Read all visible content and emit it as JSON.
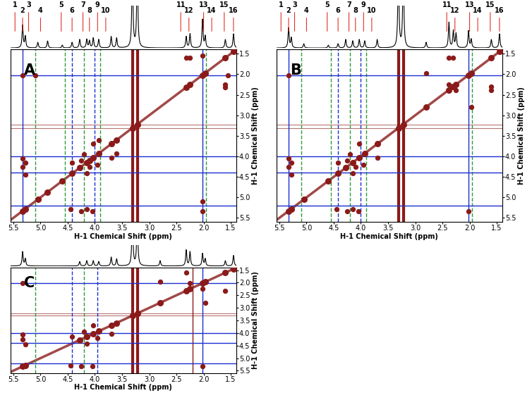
{
  "chart_data": [
    {
      "type": "nmr_2d",
      "label": "A",
      "x_label": "H-1 Chemical Shift (ppm)",
      "y_label": "H-1 Chemical Shift (ppm)",
      "xlim": [
        5.55,
        1.4
      ],
      "ylim": [
        5.6,
        1.4
      ],
      "xticks": [
        5.5,
        5.0,
        4.5,
        4.0,
        3.5,
        3.0,
        2.5,
        2.0,
        1.5
      ],
      "yticks": [
        1.5,
        2.0,
        2.5,
        3.0,
        3.5,
        4.0,
        4.5,
        5.0,
        5.5
      ],
      "color": "#8b1a1a",
      "spectrum": {
        "x": [
          5.33,
          5.28,
          5.05,
          4.87,
          4.6,
          4.42,
          4.28,
          4.15,
          4.1,
          4.03,
          3.93,
          3.7,
          3.6,
          3.31,
          3.22,
          2.32,
          2.25,
          2.02,
          1.97,
          1.6,
          1.45
        ],
        "values": [
          0.8,
          0.4,
          0.2,
          0.25,
          0.1,
          0.2,
          0.3,
          0.3,
          0.25,
          0.35,
          0.3,
          0.4,
          0.35,
          3.0,
          3.0,
          0.4,
          0.5,
          1.0,
          0.4,
          0.3,
          0.5
        ],
        "ylim": [
          0,
          1.5
        ]
      },
      "peak_labels": [
        {
          "label": "1",
          "x": 5.47
        },
        {
          "label": "2",
          "x": 5.33
        },
        {
          "label": "3",
          "x": 5.22
        },
        {
          "label": "4",
          "x": 5.0
        },
        {
          "label": "5",
          "x": 4.62
        },
        {
          "label": "6",
          "x": 4.42
        },
        {
          "label": "7",
          "x": 4.22
        },
        {
          "label": "8",
          "x": 4.1
        },
        {
          "label": "9",
          "x": 3.95
        },
        {
          "label": "10",
          "x": 3.8
        },
        {
          "label": "11",
          "x": 2.42
        },
        {
          "label": "12",
          "x": 2.27
        },
        {
          "label": "13",
          "x": 2.0
        },
        {
          "label": "14",
          "x": 1.85
        },
        {
          "label": "15",
          "x": 1.62
        },
        {
          "label": "16",
          "x": 1.45
        }
      ],
      "cross_peaks": [
        [
          5.33,
          2.02
        ],
        [
          5.33,
          4.25
        ],
        [
          5.33,
          4.05
        ],
        [
          5.28,
          4.45
        ],
        [
          5.28,
          4.15
        ],
        [
          5.1,
          2.02
        ],
        [
          4.42,
          4.15
        ],
        [
          4.25,
          4.1
        ],
        [
          4.2,
          3.95
        ],
        [
          2.32,
          1.6
        ],
        [
          2.25,
          1.6
        ],
        [
          2.02,
          1.55
        ],
        [
          4.03,
          3.7
        ],
        [
          3.93,
          3.6
        ]
      ],
      "solvent": [
        3.31,
        3.22
      ],
      "guides": [
        {
          "x": 5.33,
          "color": "#1a2fd1",
          "line_style": "solid"
        },
        {
          "x": 2.02,
          "color": "#1a2fd1",
          "line_style": "solid"
        },
        {
          "x": 5.1,
          "color": "#2e9a3a",
          "line_style": "dashed"
        },
        {
          "x": 4.55,
          "color": "#2e9a3a",
          "line_style": "dashed"
        },
        {
          "x": 4.42,
          "color": "#1a2fd1",
          "line_style": "dashed"
        },
        {
          "x": 4.2,
          "color": "#2e9a3a",
          "line_style": "dashed"
        },
        {
          "x": 4.0,
          "color": "#1a2fd1",
          "line_style": "dashed"
        },
        {
          "x": 3.9,
          "color": "#2e9a3a",
          "line_style": "dashed"
        },
        {
          "x": 1.95,
          "color": "#2e9a3a",
          "line_style": "dashed"
        },
        {
          "y": 2.02,
          "color": "#1a2fd1",
          "line_style": "solid"
        },
        {
          "y": 4.0,
          "color": "#1a2fd1",
          "line_style": "solid"
        },
        {
          "y": 4.4,
          "color": "#1a2fd1",
          "line_style": "solid"
        },
        {
          "y": 5.2,
          "color": "#1a2fd1",
          "line_style": "solid"
        }
      ]
    },
    {
      "type": "nmr_2d",
      "label": "B",
      "x_label": "H-1 Chemical Shift (ppm)",
      "y_label": "H-1 Chemical Shift (ppm)",
      "xlim": [
        5.55,
        1.4
      ],
      "ylim": [
        5.6,
        1.4
      ],
      "xticks": [
        5.5,
        5.0,
        4.5,
        4.0,
        3.5,
        3.0,
        2.5,
        2.0,
        1.5
      ],
      "yticks": [
        1.5,
        2.0,
        2.5,
        3.0,
        3.5,
        4.0,
        4.5,
        5.0,
        5.5
      ],
      "color": "#8b1a1a",
      "spectrum": {
        "x": [
          5.33,
          5.28,
          5.05,
          4.6,
          4.42,
          4.28,
          4.15,
          4.03,
          3.93,
          3.7,
          3.31,
          3.22,
          2.8,
          2.38,
          2.3,
          2.25,
          2.02,
          1.97,
          1.6,
          1.45
        ],
        "values": [
          0.7,
          0.35,
          0.15,
          0.1,
          0.15,
          0.3,
          0.25,
          0.3,
          0.25,
          0.3,
          3.0,
          3.0,
          0.2,
          0.9,
          0.6,
          0.5,
          0.6,
          0.3,
          0.3,
          0.5
        ],
        "ylim": [
          0,
          1.5
        ]
      },
      "peak_labels": [
        {
          "label": "1",
          "x": 5.47
        },
        {
          "label": "2",
          "x": 5.33
        },
        {
          "label": "3",
          "x": 5.22
        },
        {
          "label": "4",
          "x": 5.0
        },
        {
          "label": "5",
          "x": 4.62
        },
        {
          "label": "6",
          "x": 4.42
        },
        {
          "label": "7",
          "x": 4.22
        },
        {
          "label": "8",
          "x": 4.1
        },
        {
          "label": "9",
          "x": 3.95
        },
        {
          "label": "10",
          "x": 3.8
        },
        {
          "label": "11",
          "x": 2.42
        },
        {
          "label": "12",
          "x": 2.27
        },
        {
          "label": "13",
          "x": 2.0
        },
        {
          "label": "14",
          "x": 1.85
        },
        {
          "label": "15",
          "x": 1.62
        },
        {
          "label": "16",
          "x": 1.45
        }
      ],
      "cross_peaks": [
        [
          5.33,
          2.02
        ],
        [
          5.33,
          4.25
        ],
        [
          5.33,
          4.05
        ],
        [
          5.28,
          4.45
        ],
        [
          5.28,
          4.15
        ],
        [
          4.42,
          4.15
        ],
        [
          4.25,
          4.1
        ],
        [
          4.2,
          3.95
        ],
        [
          2.38,
          1.6
        ],
        [
          2.3,
          1.6
        ],
        [
          2.25,
          2.38
        ],
        [
          4.03,
          3.7
        ],
        [
          2.8,
          1.97
        ]
      ],
      "solvent": [
        3.31,
        3.22
      ],
      "guides": [
        {
          "x": 5.33,
          "color": "#1a2fd1",
          "line_style": "solid"
        },
        {
          "x": 2.02,
          "color": "#1a2fd1",
          "line_style": "solid"
        },
        {
          "x": 5.1,
          "color": "#2e9a3a",
          "line_style": "dashed"
        },
        {
          "x": 4.55,
          "color": "#2e9a3a",
          "line_style": "dashed"
        },
        {
          "x": 4.42,
          "color": "#1a2fd1",
          "line_style": "dashed"
        },
        {
          "x": 4.2,
          "color": "#2e9a3a",
          "line_style": "dashed"
        },
        {
          "x": 4.0,
          "color": "#1a2fd1",
          "line_style": "dashed"
        },
        {
          "x": 3.9,
          "color": "#2e9a3a",
          "line_style": "dashed"
        },
        {
          "x": 1.95,
          "color": "#2e9a3a",
          "line_style": "dashed"
        },
        {
          "y": 2.02,
          "color": "#1a2fd1",
          "line_style": "solid"
        },
        {
          "y": 4.0,
          "color": "#1a2fd1",
          "line_style": "solid"
        },
        {
          "y": 4.4,
          "color": "#1a2fd1",
          "line_style": "solid"
        },
        {
          "y": 5.2,
          "color": "#1a2fd1",
          "line_style": "solid"
        }
      ]
    },
    {
      "type": "nmr_2d",
      "label": "C",
      "x_label": "H-1 Chemical Shift (ppm)",
      "y_label": "H-1 Chemical Shift (ppm)",
      "xlim": [
        5.55,
        1.4
      ],
      "ylim": [
        5.6,
        1.4
      ],
      "xticks": [
        5.5,
        5.0,
        4.5,
        4.0,
        3.5,
        3.0,
        2.5,
        2.0,
        1.5
      ],
      "yticks": [
        1.5,
        2.0,
        2.5,
        3.0,
        3.5,
        4.0,
        4.5,
        5.0,
        5.5
      ],
      "color": "#8b1a1a",
      "spectrum": {
        "x": [
          5.33,
          5.28,
          4.28,
          4.15,
          4.03,
          3.93,
          3.7,
          3.6,
          3.31,
          3.22,
          2.8,
          2.32,
          2.25,
          2.02,
          1.97,
          1.6,
          1.45
        ],
        "values": [
          0.8,
          0.4,
          0.25,
          0.3,
          0.3,
          0.25,
          0.5,
          0.4,
          3.0,
          3.0,
          0.3,
          0.9,
          0.8,
          0.7,
          0.4,
          0.3,
          0.6
        ],
        "ylim": [
          0,
          1.2
        ]
      },
      "peak_labels": [],
      "cross_peaks": [
        [
          5.33,
          2.02
        ],
        [
          5.33,
          4.25
        ],
        [
          5.33,
          4.05
        ],
        [
          5.28,
          4.45
        ],
        [
          4.42,
          4.15
        ],
        [
          4.2,
          3.95
        ],
        [
          2.32,
          1.6
        ],
        [
          2.25,
          2.02
        ],
        [
          2.8,
          1.97
        ],
        [
          4.03,
          3.7
        ]
      ],
      "solvent": [
        3.31,
        3.22
      ],
      "guides": [
        {
          "x": 5.1,
          "color": "#2e9a3a",
          "line_style": "dashed"
        },
        {
          "x": 4.42,
          "color": "#1a2fd1",
          "line_style": "dashed"
        },
        {
          "x": 4.2,
          "color": "#2e9a3a",
          "line_style": "dashed"
        },
        {
          "x": 3.95,
          "color": "#1a2fd1",
          "line_style": "dashed"
        },
        {
          "x": 2.2,
          "color": "#8b1a1a",
          "line_style": "solid"
        },
        {
          "x": 2.02,
          "color": "#1a2fd1",
          "line_style": "solid"
        },
        {
          "y": 2.02,
          "color": "#1a2fd1",
          "line_style": "solid"
        },
        {
          "y": 4.0,
          "color": "#1a2fd1",
          "line_style": "solid"
        },
        {
          "y": 4.4,
          "color": "#1a2fd1",
          "line_style": "solid"
        },
        {
          "y": 5.2,
          "color": "#1a2fd1",
          "line_style": "solid"
        }
      ]
    }
  ]
}
